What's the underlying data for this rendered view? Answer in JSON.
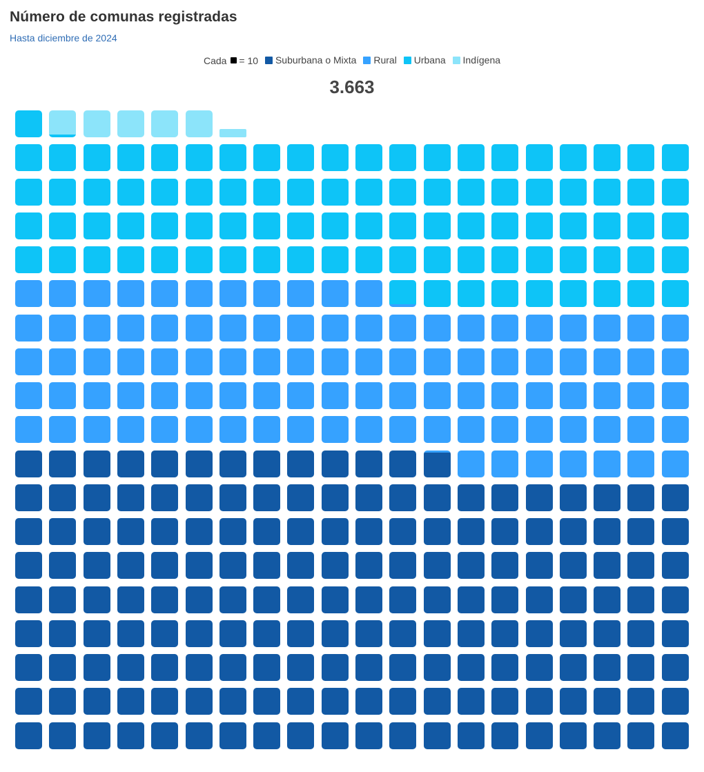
{
  "header": {
    "title": "Número de comunas registradas",
    "subtitle": "Hasta diciembre de 2024"
  },
  "legend": {
    "unit_prefix": "Cada",
    "unit_value": "= 10",
    "items": [
      {
        "label": "Suburbana o Mixta",
        "color": "#1259A4"
      },
      {
        "label": "Rural",
        "color": "#36A2FF"
      },
      {
        "label": "Urbana",
        "color": "#0EC4F7"
      },
      {
        "label": "Indígena",
        "color": "#8CE4FA"
      }
    ]
  },
  "total_label": "3.663",
  "chart_data": {
    "type": "waffle",
    "title": "Número de comunas registradas",
    "subtitle": "Hasta diciembre de 2024",
    "unit": 10,
    "unit_label": "Cada ■ = 10",
    "total": 3663,
    "columns": 20,
    "rows": 19,
    "fill_order": "bottom-to-top, left-to-right",
    "categories": [
      "Suburbana o Mixta",
      "Rural",
      "Urbana",
      "Indígena"
    ],
    "values": [
      1729,
      982,
      900,
      52
    ],
    "colors": [
      "#1259A4",
      "#36A2FF",
      "#0EC4F7",
      "#8CE4FA"
    ],
    "legend_position": "top-center"
  }
}
